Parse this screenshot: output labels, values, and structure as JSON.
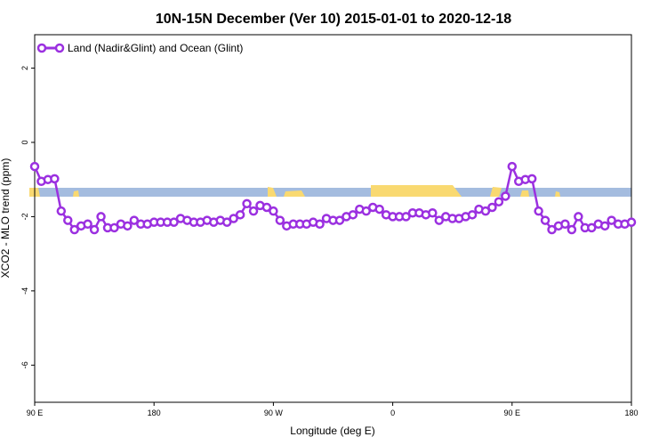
{
  "chart_data": {
    "type": "line",
    "title": "10N-15N December (Ver 10)   2015-01-01 to 2020-12-18",
    "xlabel": "Longitude (deg E)",
    "ylabel": "XCO2 - MLO trend (ppm)",
    "xlim": [
      90,
      540
    ],
    "ylim": [
      -7.0,
      2.9
    ],
    "x_ticks": [
      {
        "value": 90,
        "label": "90 E"
      },
      {
        "value": 180,
        "label": "180"
      },
      {
        "value": 270,
        "label": "90 W"
      },
      {
        "value": 360,
        "label": "0"
      },
      {
        "value": 450,
        "label": "90 E"
      },
      {
        "value": 540,
        "label": "180"
      }
    ],
    "y_ticks": [
      {
        "value": 2,
        "label": "2"
      },
      {
        "value": 0,
        "label": "0"
      },
      {
        "value": -2,
        "label": "-2"
      },
      {
        "value": -4,
        "label": "-4"
      },
      {
        "value": -6,
        "label": "-6"
      }
    ],
    "grid": false,
    "legend_position": "top-left",
    "colors": {
      "series": "#9b30e0",
      "ocean_band": "#a4bcdf",
      "land": "#f9d971"
    },
    "series": [
      {
        "name": "Land (Nadir&Glint) and Ocean (Glint)",
        "x": [
          90,
          95,
          100,
          105,
          110,
          115,
          120,
          125,
          130,
          135,
          140,
          145,
          150,
          155,
          160,
          165,
          170,
          175,
          180,
          185,
          190,
          195,
          200,
          205,
          210,
          215,
          220,
          225,
          230,
          235,
          240,
          245,
          250,
          255,
          260,
          265,
          270,
          275,
          280,
          285,
          290,
          295,
          300,
          305,
          310,
          315,
          320,
          325,
          330,
          335,
          340,
          345,
          350,
          355,
          360,
          365,
          370,
          375,
          380,
          385,
          390,
          395,
          400,
          405,
          410,
          415,
          420,
          425,
          430,
          435,
          440,
          445,
          450,
          455,
          460,
          465,
          470,
          475,
          480,
          485,
          490,
          495,
          500,
          505,
          510,
          515,
          520,
          525,
          530,
          535,
          540
        ],
        "y": [
          -0.65,
          -1.05,
          -1.0,
          -0.98,
          -1.85,
          -2.1,
          -2.35,
          -2.25,
          -2.2,
          -2.35,
          -2.0,
          -2.3,
          -2.3,
          -2.2,
          -2.25,
          -2.1,
          -2.2,
          -2.2,
          -2.15,
          -2.15,
          -2.15,
          -2.15,
          -2.05,
          -2.1,
          -2.15,
          -2.15,
          -2.1,
          -2.15,
          -2.1,
          -2.15,
          -2.05,
          -1.95,
          -1.65,
          -1.85,
          -1.7,
          -1.75,
          -1.85,
          -2.1,
          -2.25,
          -2.2,
          -2.2,
          -2.2,
          -2.15,
          -2.2,
          -2.05,
          -2.1,
          -2.1,
          -2.0,
          -1.95,
          -1.8,
          -1.85,
          -1.75,
          -1.8,
          -1.95,
          -2.0,
          -2.0,
          -2.0,
          -1.9,
          -1.9,
          -1.95,
          -1.9,
          -2.1,
          -2.0,
          -2.05,
          -2.05,
          -2.0,
          -1.95,
          -1.8,
          -1.85,
          -1.75,
          -1.6,
          -1.45,
          -0.65,
          -1.05,
          -1.0,
          -0.98,
          -1.85,
          -2.1,
          -2.35,
          -2.25,
          -2.2,
          -2.35,
          -2.0,
          -2.3,
          -2.3,
          -2.2,
          -2.25,
          -2.1,
          -2.2,
          -2.2,
          -2.15
        ]
      }
    ]
  }
}
